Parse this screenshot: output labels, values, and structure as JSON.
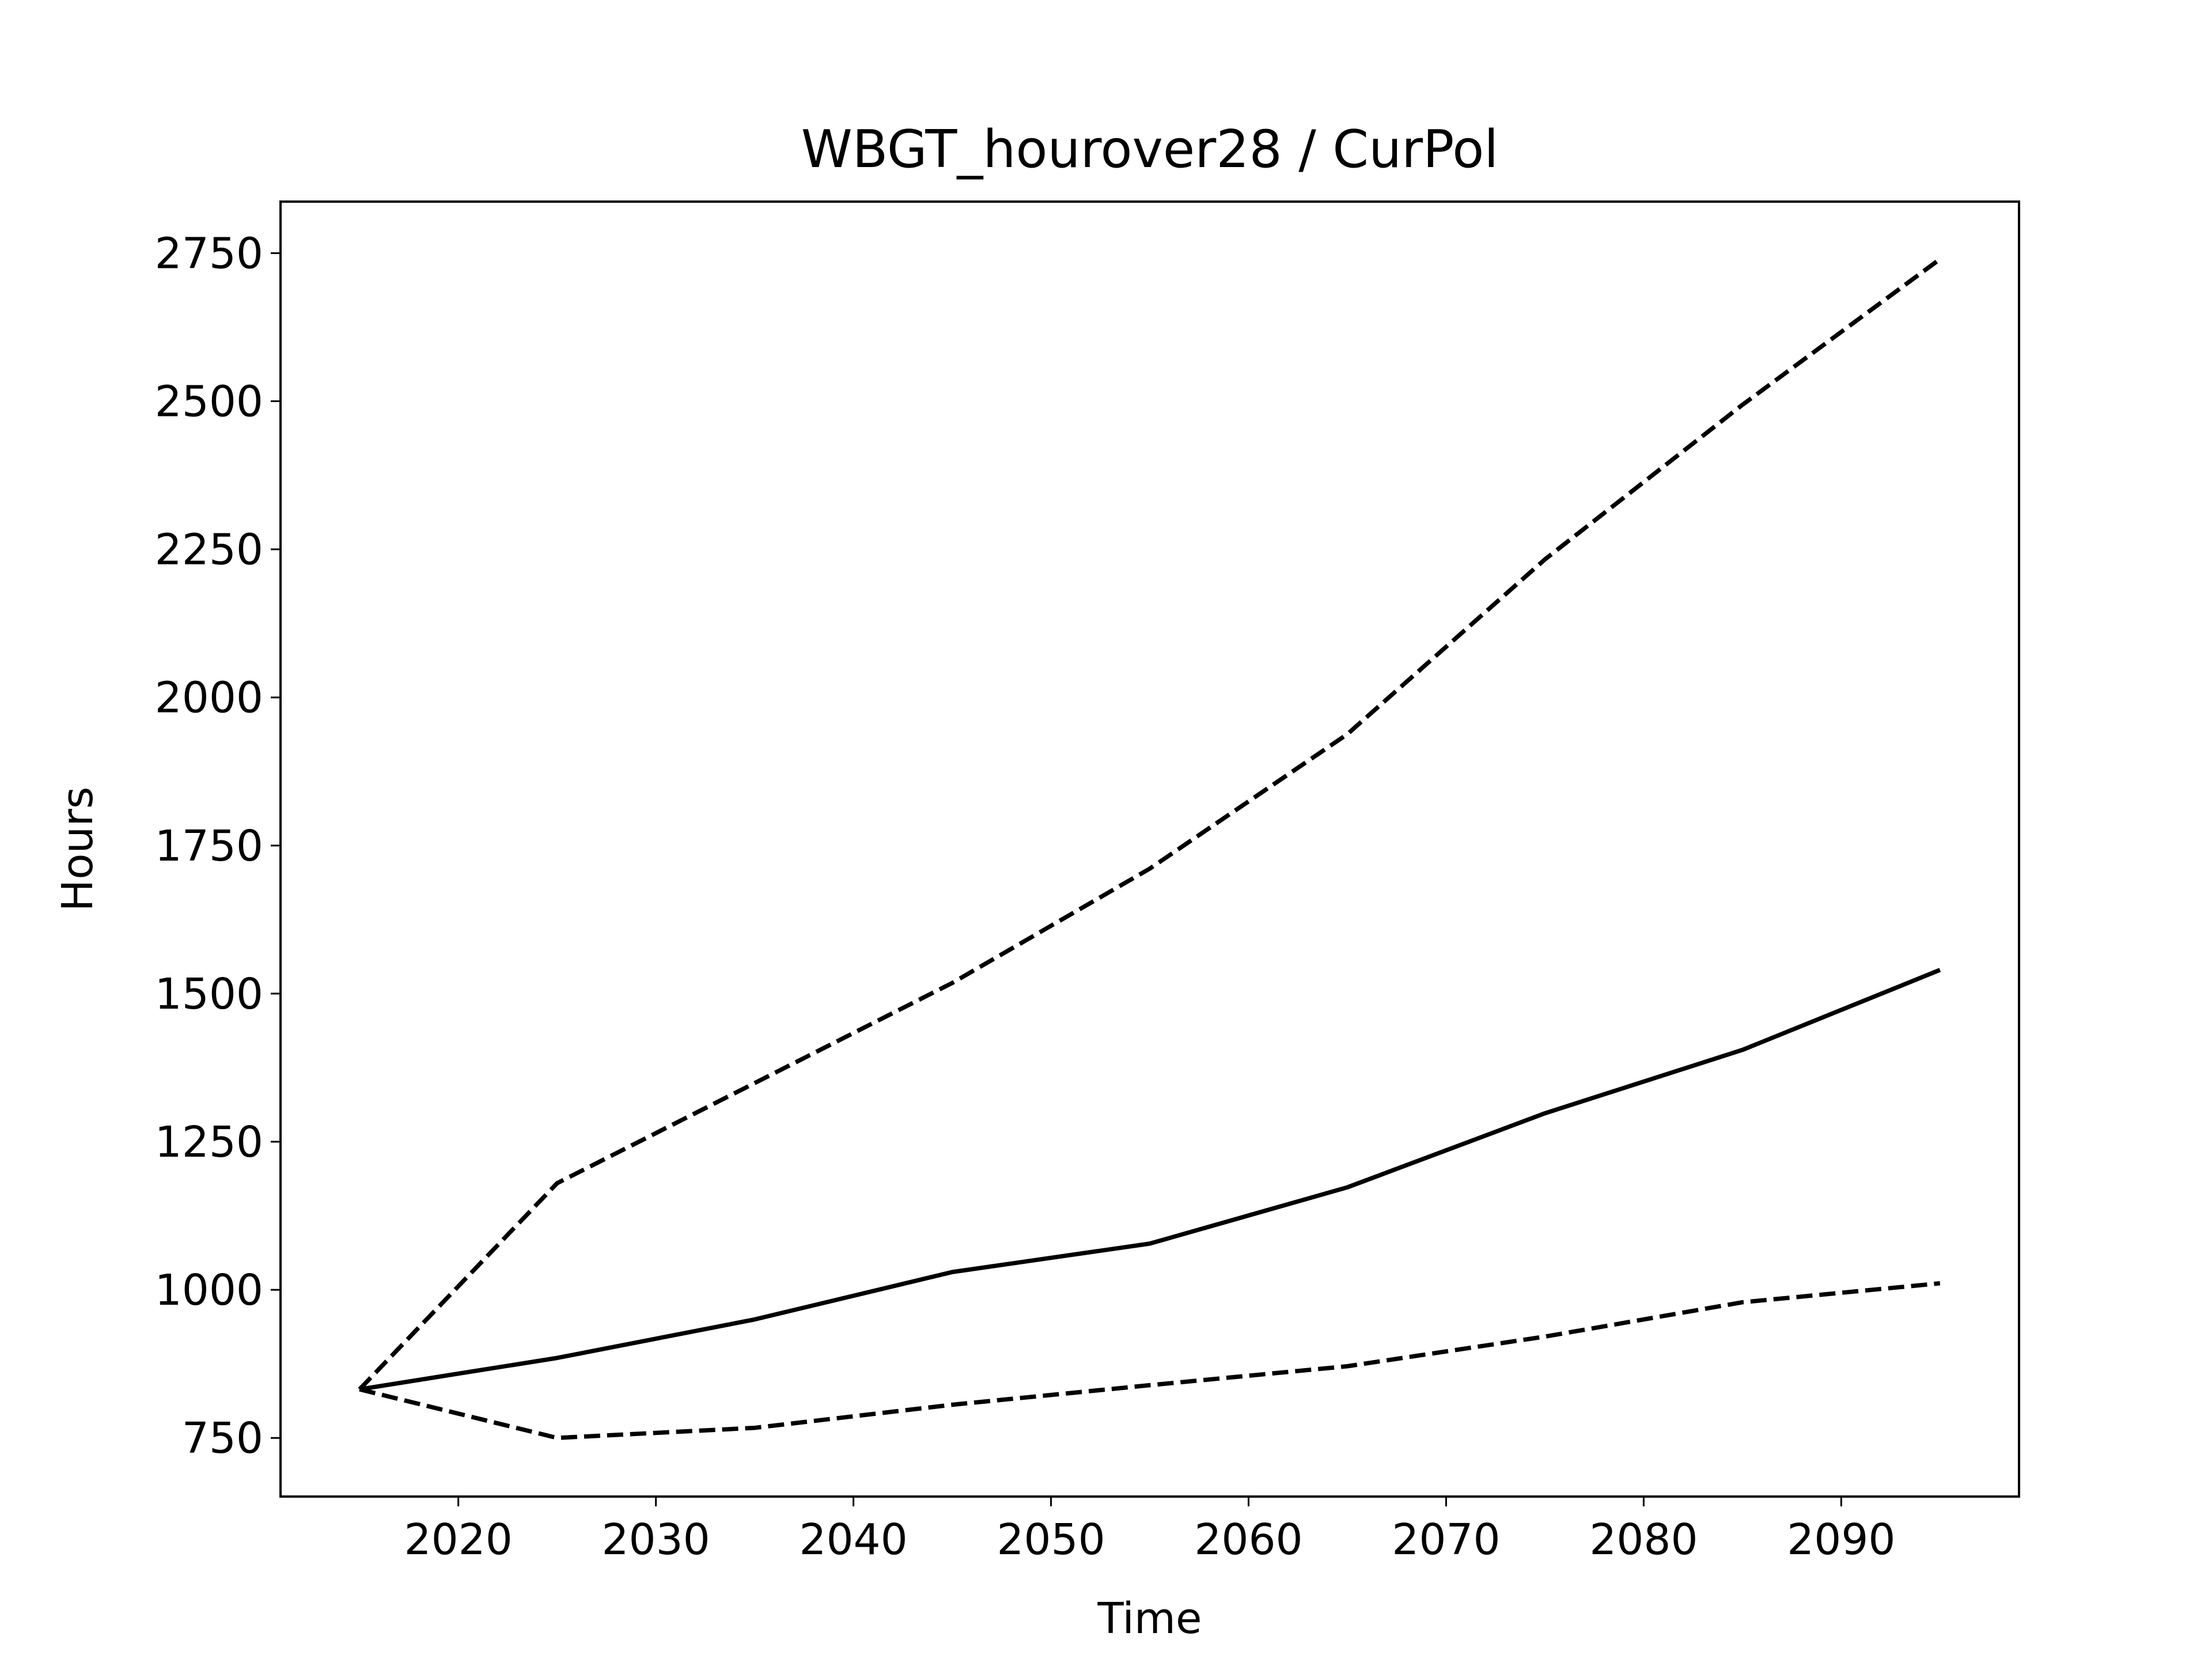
{
  "chart_data": {
    "type": "line",
    "title": "WBGT_hourover28 / CurPol",
    "x_label": "Time",
    "y_label": "Hours",
    "x": [
      2015,
      2025,
      2035,
      2045,
      2055,
      2065,
      2075,
      2085,
      2095
    ],
    "series": [
      {
        "color": "#000000",
        "linestyle": "solid",
        "values": [
          832,
          885,
          950,
          1030,
          1078,
          1173,
          1298,
          1405,
          1540
        ]
      },
      {
        "color": "#000000",
        "linestyle": "dashed",
        "values": [
          832,
          1180,
          1349,
          1518,
          1711,
          1938,
          2233,
          2494,
          2740
        ]
      },
      {
        "color": "#000000",
        "linestyle": "dashed",
        "values": [
          832,
          750,
          767,
          806,
          839,
          871,
          921,
          979,
          1011
        ]
      }
    ],
    "xlim": [
      2011,
      2099
    ],
    "xticks": [
      2020,
      2030,
      2040,
      2050,
      2060,
      2070,
      2080,
      2090
    ],
    "ylim": [
      651,
      2837
    ],
    "yticks": [
      750,
      1000,
      1250,
      1500,
      1750,
      2000,
      2250,
      2500,
      2750
    ],
    "grid": false
  }
}
